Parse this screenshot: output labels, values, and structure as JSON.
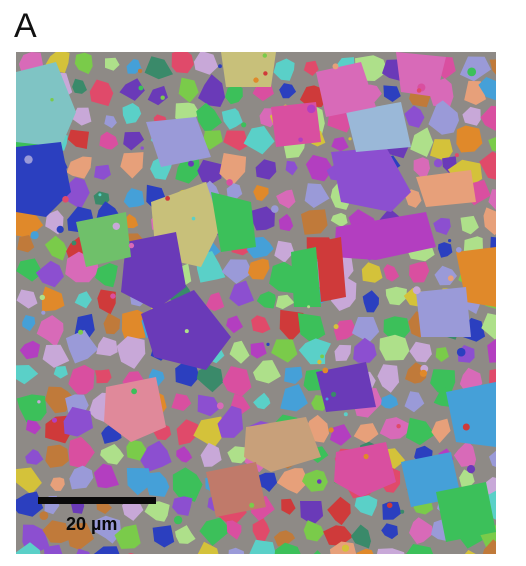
{
  "figure": {
    "panel_label": "A",
    "scale_bar_label": "20 µm"
  },
  "palette": [
    "#d94fa0",
    "#3cc05a",
    "#2b3fbf",
    "#e0892a",
    "#b33ec0",
    "#5ad0c8",
    "#e04a6a",
    "#8c4fd0",
    "#7acb4a",
    "#d4c23a",
    "#9a9ad8",
    "#cf3a3a",
    "#45a0d8",
    "#c8a8d8",
    "#e7a07a",
    "#6a3ab8",
    "#aee08a",
    "#d86ab8",
    "#3a8a6a",
    "#c07a3a"
  ]
}
